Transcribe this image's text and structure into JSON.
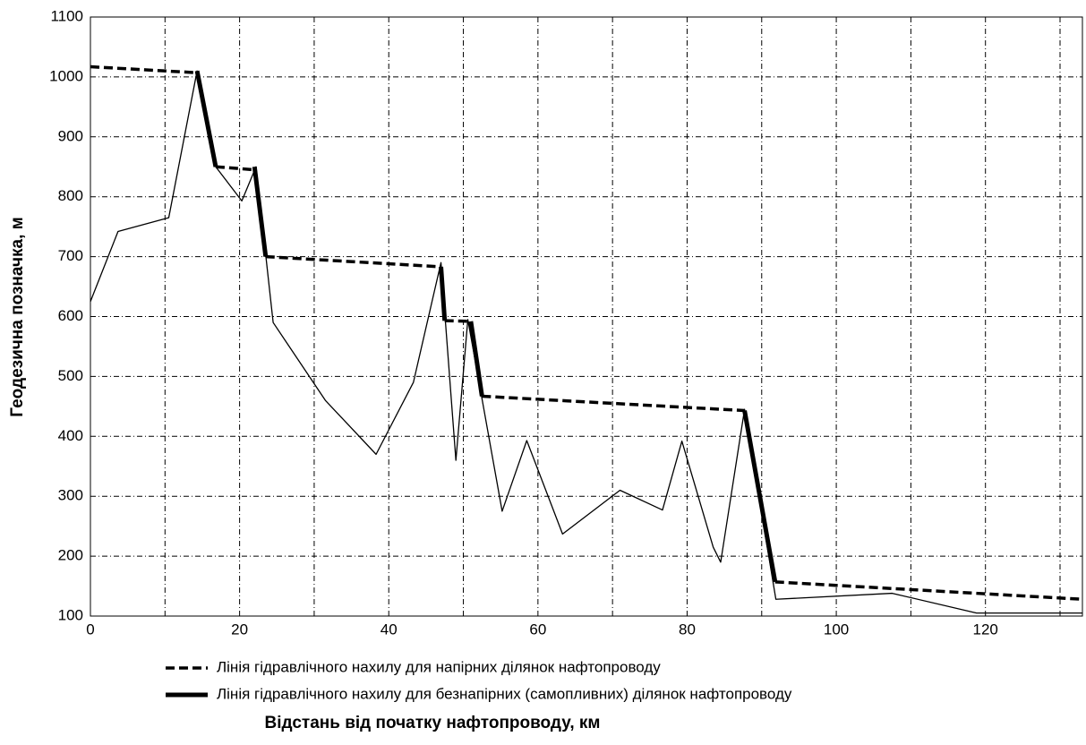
{
  "chart_data": {
    "type": "line",
    "x_label": "Відстань від початку нафтопроводу,  км",
    "y_label": "Геодезична  позначка,  м",
    "xlim": [
      0,
      133
    ],
    "xticks": [
      0,
      20,
      40,
      60,
      80,
      100,
      120
    ],
    "x_minor_ticks": [
      10,
      30,
      50,
      70,
      90,
      110,
      130
    ],
    "ylim": [
      100,
      1100
    ],
    "yticks": [
      100,
      200,
      300,
      400,
      500,
      600,
      700,
      800,
      900,
      1000,
      1100
    ],
    "grid": true,
    "series": [
      {
        "color": "#000",
        "style": "thin",
        "x": [
          0,
          3.7,
          10.5,
          14.3,
          16.8,
          20.3,
          22.2,
          24.5,
          31.5,
          38.3,
          43.3,
          47,
          49,
          50.6,
          55.2,
          58.5,
          63.3,
          71,
          76.7,
          79.3,
          83.5,
          84.5,
          87.7,
          91.9,
          107.5,
          118.8,
          133
        ],
        "values": [
          625,
          742,
          765,
          1010,
          850,
          793,
          850,
          590,
          460,
          370,
          490,
          690,
          360,
          595,
          275,
          393,
          237,
          310,
          277,
          392,
          215,
          190,
          445,
          128,
          138,
          105,
          105
        ]
      },
      {
        "name": "Лінія  гідравлічного нахилу  для  напірних  ділянок  нафтопроводу",
        "color": "#000",
        "style": "dashed",
        "x": [
          0,
          14.3,
          null,
          16.8,
          22,
          null,
          23.5,
          47,
          null,
          47.5,
          51,
          null,
          52.5,
          87.7,
          null,
          91.8,
          133
        ],
        "values": [
          1017,
          1007,
          null,
          850,
          845,
          null,
          700,
          683,
          null,
          593,
          592,
          null,
          467,
          443,
          null,
          157,
          128
        ]
      },
      {
        "name": "Лінія  гідравлічного нахилу  для  безнапірних  (самопливних)  ділянок  нафтопроводу",
        "color": "#000",
        "style": "thick",
        "x": [
          14.3,
          16.8,
          null,
          22,
          23.5,
          null,
          47,
          47.5,
          null,
          51,
          52.5,
          null,
          87.7,
          91.8
        ],
        "values": [
          1010,
          850,
          null,
          850,
          700,
          null,
          683,
          593,
          null,
          592,
          467,
          null,
          443,
          157
        ]
      }
    ]
  }
}
